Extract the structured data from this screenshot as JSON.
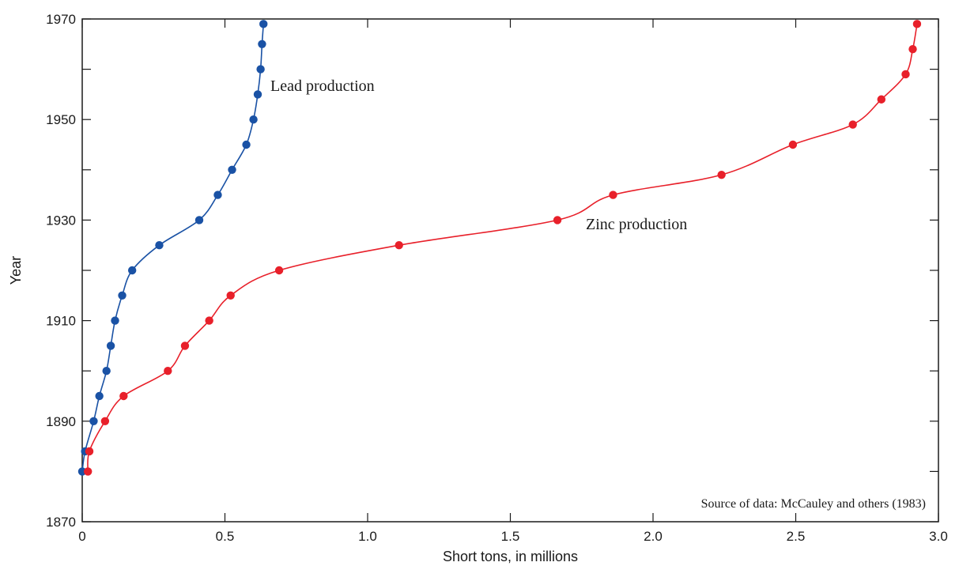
{
  "chart_data": {
    "type": "line",
    "title": "",
    "xlabel": "Short tons, in millions",
    "ylabel": "Year",
    "xlim": [
      0,
      3.0
    ],
    "ylim": [
      1870,
      1970
    ],
    "x_ticks": [
      "0",
      "0.5",
      "1.0",
      "1.5",
      "2.0",
      "2.5",
      "3.0"
    ],
    "x_tick_values": [
      0,
      0.5,
      1.0,
      1.5,
      2.0,
      2.5,
      3.0
    ],
    "y_ticks": [
      "1870",
      "1890",
      "1910",
      "1930",
      "1950",
      "1970"
    ],
    "y_tick_values": [
      1870,
      1890,
      1910,
      1930,
      1950,
      1970
    ],
    "grid": false,
    "series": [
      {
        "name": "Lead production",
        "color": "#1a52a5",
        "points": [
          {
            "x": 0.0,
            "y": 1880
          },
          {
            "x": 0.01,
            "y": 1884
          },
          {
            "x": 0.04,
            "y": 1890
          },
          {
            "x": 0.06,
            "y": 1895
          },
          {
            "x": 0.085,
            "y": 1900
          },
          {
            "x": 0.1,
            "y": 1905
          },
          {
            "x": 0.115,
            "y": 1910
          },
          {
            "x": 0.14,
            "y": 1915
          },
          {
            "x": 0.175,
            "y": 1920
          },
          {
            "x": 0.27,
            "y": 1925
          },
          {
            "x": 0.41,
            "y": 1930
          },
          {
            "x": 0.475,
            "y": 1935
          },
          {
            "x": 0.525,
            "y": 1940
          },
          {
            "x": 0.575,
            "y": 1945
          },
          {
            "x": 0.6,
            "y": 1950
          },
          {
            "x": 0.615,
            "y": 1955
          },
          {
            "x": 0.625,
            "y": 1960
          },
          {
            "x": 0.63,
            "y": 1965
          },
          {
            "x": 0.635,
            "y": 1969
          }
        ]
      },
      {
        "name": "Zinc production",
        "color": "#e8202a",
        "points": [
          {
            "x": 0.02,
            "y": 1880
          },
          {
            "x": 0.025,
            "y": 1884
          },
          {
            "x": 0.08,
            "y": 1890
          },
          {
            "x": 0.145,
            "y": 1895
          },
          {
            "x": 0.3,
            "y": 1900
          },
          {
            "x": 0.36,
            "y": 1905
          },
          {
            "x": 0.445,
            "y": 1910
          },
          {
            "x": 0.52,
            "y": 1915
          },
          {
            "x": 0.69,
            "y": 1920
          },
          {
            "x": 1.11,
            "y": 1925
          },
          {
            "x": 1.665,
            "y": 1930
          },
          {
            "x": 1.86,
            "y": 1935
          },
          {
            "x": 2.24,
            "y": 1939
          },
          {
            "x": 2.49,
            "y": 1945
          },
          {
            "x": 2.7,
            "y": 1949
          },
          {
            "x": 2.8,
            "y": 1954
          },
          {
            "x": 2.885,
            "y": 1959
          },
          {
            "x": 2.91,
            "y": 1964
          },
          {
            "x": 2.925,
            "y": 1969
          }
        ]
      }
    ],
    "annotations": {
      "lead_label": "Lead production",
      "zinc_label": "Zinc production",
      "source": "Source of data: McCauley and others (1983)"
    }
  }
}
